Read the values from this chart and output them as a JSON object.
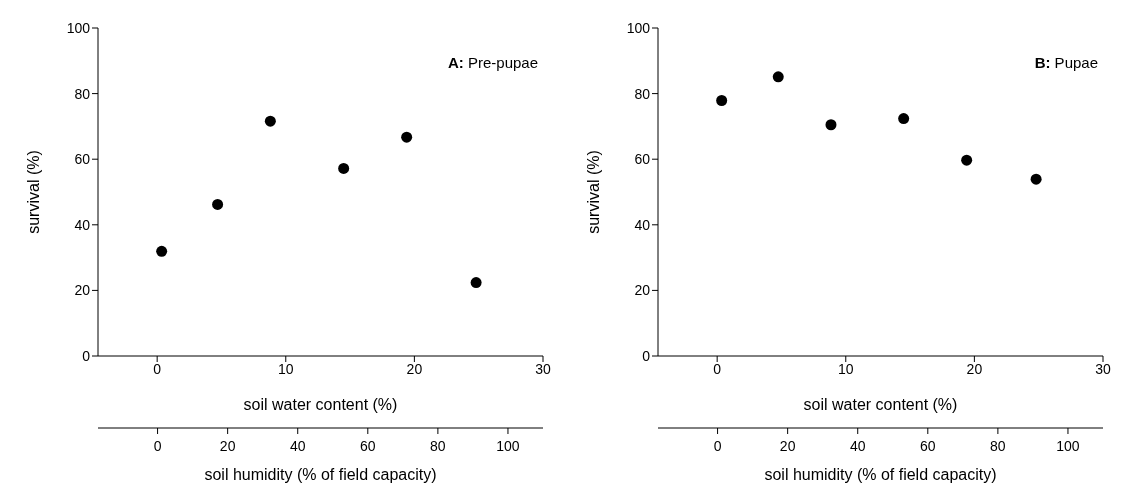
{
  "chart_data": [
    {
      "type": "scatter",
      "xlabel": "soil water content (%)",
      "ylabel": "survival (%)",
      "x2label": "soil humidity (% of field capacity)",
      "annotations": [
        "A: Pre-pupae"
      ],
      "x": [
        0.35,
        4.7,
        8.8,
        14.5,
        19.4,
        24.8
      ],
      "series": [
        {
          "color": "#000000",
          "values": [
            31.9,
            46.2,
            71.6,
            57.2,
            66.7,
            22.4
          ]
        }
      ],
      "xlim": [
        -4.6,
        30
      ],
      "xticks": [
        0,
        10,
        20,
        30
      ],
      "x2lim": [
        -17,
        110
      ],
      "x2ticks": [
        0,
        20,
        40,
        60,
        80,
        100
      ],
      "ylim": [
        0,
        100
      ],
      "yticks": [
        0,
        20,
        40,
        60,
        80,
        100
      ],
      "marker": "circle",
      "grid": false,
      "legend": false
    },
    {
      "type": "scatter",
      "xlabel": "soil water content (%)",
      "ylabel": "survival (%)",
      "x2label": "soil humidity (% of field capacity)",
      "annotations": [
        "B: Pupae"
      ],
      "x": [
        0.35,
        4.75,
        8.85,
        14.5,
        19.4,
        24.8
      ],
      "series": [
        {
          "color": "#000000",
          "values": [
            77.9,
            85.1,
            70.5,
            72.4,
            59.7,
            53.9
          ]
        }
      ],
      "xlim": [
        -4.6,
        30
      ],
      "xticks": [
        0,
        10,
        20,
        30
      ],
      "x2lim": [
        -17,
        110
      ],
      "x2ticks": [
        0,
        20,
        40,
        60,
        80,
        100
      ],
      "ylim": [
        0,
        100
      ],
      "yticks": [
        0,
        20,
        40,
        60,
        80,
        100
      ],
      "marker": "circle",
      "grid": false,
      "legend": false
    }
  ]
}
